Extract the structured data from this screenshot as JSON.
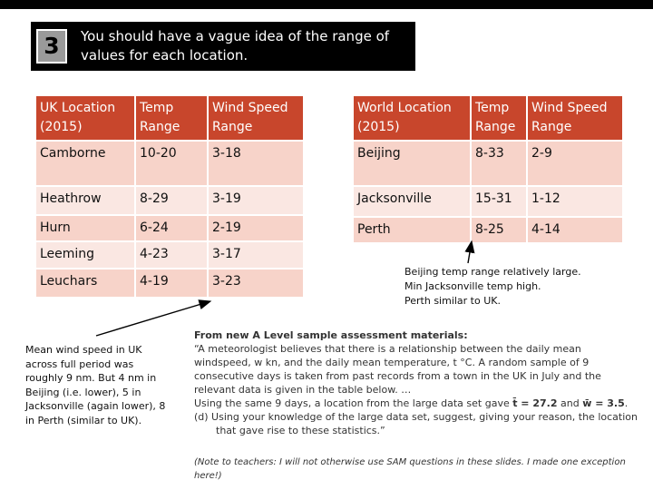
{
  "slide": {
    "number": "3",
    "header": "You should have a vague idea of the range of values for each location."
  },
  "uk_table": {
    "headers": [
      "UK Location (2015)",
      "Temp Range",
      "Wind Speed Range"
    ],
    "rows": [
      [
        "Camborne",
        "10-20",
        "3-18"
      ],
      [
        "Heathrow",
        "8-29",
        "3-19"
      ],
      [
        "Hurn",
        "6-24",
        "2-19"
      ],
      [
        "Leeming",
        "4-23",
        "3-17"
      ],
      [
        "Leuchars",
        "4-19",
        "3-23"
      ]
    ]
  },
  "world_table": {
    "headers": [
      "World Location (2015)",
      "Temp Range",
      "Wind Speed Range"
    ],
    "rows": [
      [
        "Beijing",
        "8-33",
        "2-9"
      ],
      [
        "Jacksonville",
        "15-31",
        "1-12"
      ],
      [
        "Perth",
        "8-25",
        "4-14"
      ]
    ]
  },
  "notes": {
    "right": [
      "Beijing temp range relatively large.",
      "Min Jacksonville temp high.",
      "Perth similar to UK."
    ],
    "left": "Mean wind speed in UK across full period was roughly 9 nm. But 4 nm in Beijing (i.e. lower), 5 in Jacksonville (again lower), 8 in Perth (similar to UK)."
  },
  "sam": {
    "title": "From new A Level sample assessment materials:",
    "para1": "“A meteorologist believes that there is a relationship between the daily mean windspeed, w kn, and the daily mean temperature, t °C. A random sample of 9 consecutive days is taken from past records from a town in the UK in July and the relevant data is given in the table below. …",
    "para2_a": "Using the same 9 days, a location from the large data set gave ",
    "t_mean": "t̄ = 27.2",
    "and": " and ",
    "w_mean": "w̄ = 3.5",
    "para2_end": ".",
    "part_d": "(d)   Using your knowledge of the large data set, suggest, giving your reason, the location that gave rise to these statistics.”",
    "teacher_note": "(Note to teachers: I will not otherwise use SAM questions in these slides. I made one exception here!)"
  }
}
